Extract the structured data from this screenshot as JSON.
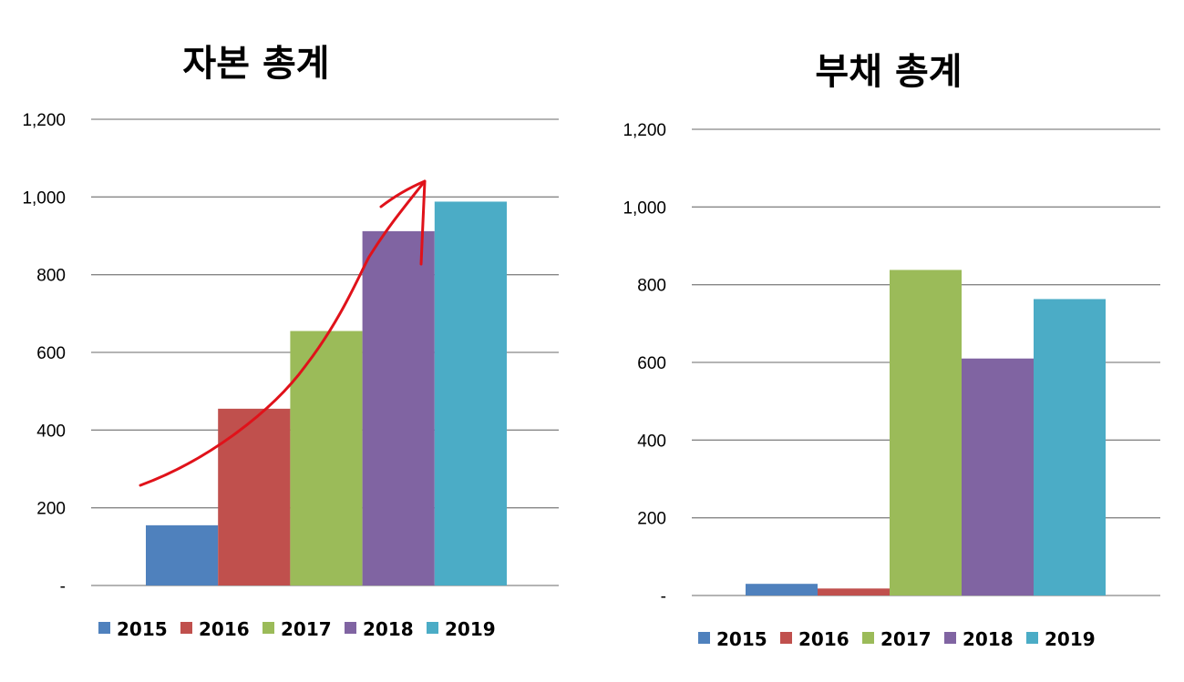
{
  "chart_data": [
    {
      "type": "bar",
      "title": "자본 총계",
      "categories": [
        "2015",
        "2016",
        "2017",
        "2018",
        "2019"
      ],
      "values": [
        155,
        455,
        655,
        912,
        988
      ],
      "colors": [
        "#4F81BD",
        "#C0504D",
        "#9BBB59",
        "#8064A2",
        "#4BACC6"
      ],
      "ylim": [
        0,
        1200
      ],
      "yticks": [
        0,
        200,
        400,
        600,
        800,
        1000,
        1200
      ],
      "ytick_labels": [
        "-",
        "200",
        "400",
        "600",
        "800",
        "1,000",
        "1,200"
      ],
      "grid": true,
      "legend": [
        "2015",
        "2016",
        "2017",
        "2018",
        "2019"
      ],
      "legend_position": "bottom",
      "annotation": "red hand-drawn upward arrow (increasing trend)"
    },
    {
      "type": "bar",
      "title": "부채 총계",
      "categories": [
        "2015",
        "2016",
        "2017",
        "2018",
        "2019"
      ],
      "values": [
        30,
        18,
        838,
        610,
        763
      ],
      "colors": [
        "#4F81BD",
        "#C0504D",
        "#9BBB59",
        "#8064A2",
        "#4BACC6"
      ],
      "ylim": [
        0,
        1200
      ],
      "yticks": [
        0,
        200,
        400,
        600,
        800,
        1000,
        1200
      ],
      "ytick_labels": [
        "-",
        "200",
        "400",
        "600",
        "800",
        "1,000",
        "1,200"
      ],
      "grid": true,
      "legend": [
        "2015",
        "2016",
        "2017",
        "2018",
        "2019"
      ],
      "legend_position": "bottom"
    }
  ]
}
